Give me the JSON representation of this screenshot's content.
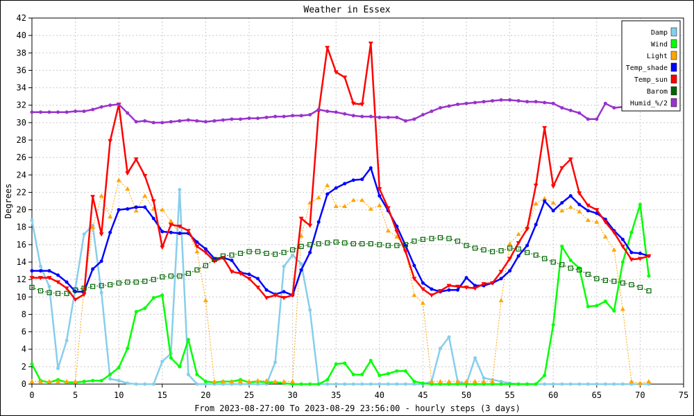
{
  "chart_data": {
    "type": "line",
    "title": "Weather in Essex",
    "xlabel": "From 2023-08-27:00 To 2023-08-29 23:56:00 - hourly steps (3 days)",
    "ylabel": "Degrees",
    "xlim": [
      0,
      75
    ],
    "ylim": [
      0,
      42
    ],
    "xticks": [
      0,
      5,
      10,
      15,
      20,
      25,
      30,
      35,
      40,
      45,
      50,
      55,
      60,
      65,
      70,
      75
    ],
    "yticks": [
      0,
      2,
      4,
      6,
      8,
      10,
      12,
      14,
      16,
      18,
      20,
      22,
      24,
      26,
      28,
      30,
      32,
      34,
      36,
      38,
      40,
      42
    ],
    "grid": true,
    "legend_position": "top-right",
    "series": [
      {
        "name": "Damp",
        "color": "#87ceeb",
        "marker": "circle",
        "dashed": false,
        "values": [
          18.8,
          13.5,
          11.2,
          1.8,
          5.0,
          11.0,
          17.2,
          18.2,
          10.5,
          0.6,
          0.4,
          0.1,
          0.0,
          0.0,
          0.0,
          2.6,
          3.5,
          22.3,
          1.1,
          0.0,
          0.0,
          0.0,
          0.0,
          0.0,
          0.0,
          0.0,
          0.0,
          0.0,
          2.5,
          13.5,
          14.8,
          13.8,
          8.5,
          0.0,
          0.0,
          0.0,
          0.0,
          0.0,
          0.0,
          0.0,
          0.0,
          0.0,
          0.0,
          0.0,
          0.0,
          0.0,
          0.3,
          4.1,
          5.4,
          0.3,
          0.0,
          3.0,
          0.7,
          0.5,
          0.3,
          0.1,
          0.0,
          0.0,
          0.0,
          0.0,
          0.0,
          0.0,
          0.0,
          0.0,
          0.0,
          0.0,
          0.0,
          0.0,
          0.0,
          0.0,
          0.0,
          0.0
        ]
      },
      {
        "name": "Wind",
        "color": "#00ff00",
        "marker": "circle",
        "dashed": false,
        "values": [
          2.3,
          0.4,
          0.2,
          0.5,
          0.2,
          0.2,
          0.3,
          0.4,
          0.4,
          1.1,
          1.9,
          4.1,
          8.3,
          8.7,
          9.9,
          10.2,
          3.0,
          2.0,
          5.1,
          1.1,
          0.3,
          0.2,
          0.3,
          0.3,
          0.5,
          0.2,
          0.3,
          0.2,
          0.2,
          0.1,
          0.0,
          0.0,
          0.0,
          0.0,
          0.5,
          2.3,
          2.4,
          1.1,
          1.1,
          2.7,
          1.0,
          1.2,
          1.5,
          1.5,
          0.3,
          0.1,
          0.0,
          0.0,
          0.0,
          0.0,
          0.0,
          0.0,
          0.0,
          0.0,
          0.0,
          0.0,
          0.0,
          0.0,
          0.0,
          1.0,
          6.8,
          15.8,
          14.2,
          13.3,
          8.9,
          9.0,
          9.5,
          8.4,
          14.0,
          17.4,
          20.6,
          12.4
        ]
      },
      {
        "name": "Light",
        "color": "#ffa500",
        "marker": "triangle",
        "dashed": true,
        "values": [
          0.3,
          0.3,
          0.3,
          0.3,
          0.3,
          0.3,
          11.0,
          18.0,
          21.6,
          19.2,
          23.4,
          22.4,
          19.9,
          21.6,
          20.1,
          20.0,
          18.7,
          17.3,
          17.4,
          15.2,
          9.6,
          0.3,
          0.3,
          0.3,
          0.3,
          0.3,
          0.4,
          0.4,
          0.3,
          0.3,
          0.3,
          17.0,
          20.8,
          21.4,
          22.8,
          20.4,
          20.4,
          21.1,
          21.1,
          20.1,
          20.5,
          17.6,
          16.9,
          15.6,
          10.2,
          9.3,
          0.3,
          0.3,
          0.3,
          0.3,
          0.3,
          0.3,
          0.3,
          0.3,
          9.6,
          16.1,
          17.2,
          18.0,
          20.7,
          21.3,
          20.8,
          19.9,
          20.3,
          19.8,
          18.8,
          18.6,
          16.9,
          15.4,
          8.6,
          0.3,
          0.1,
          0.3
        ]
      },
      {
        "name": "Temp_shade",
        "color": "#0000ff",
        "marker": "circle",
        "dashed": false,
        "values": [
          13.0,
          13.0,
          13.0,
          12.5,
          11.7,
          10.6,
          10.6,
          13.2,
          14.1,
          17.4,
          20.0,
          20.1,
          20.3,
          20.3,
          19.0,
          17.5,
          17.4,
          17.3,
          17.3,
          16.3,
          15.5,
          14.4,
          14.5,
          14.2,
          12.8,
          12.6,
          12.1,
          10.8,
          10.3,
          10.6,
          10.2,
          13.1,
          15.1,
          18.6,
          21.8,
          22.5,
          23.0,
          23.4,
          23.5,
          24.8,
          21.6,
          19.9,
          18.1,
          15.9,
          13.6,
          11.6,
          10.9,
          10.6,
          10.8,
          10.8,
          12.2,
          11.3,
          11.3,
          11.6,
          12.1,
          13.0,
          14.7,
          15.9,
          18.3,
          21.0,
          19.9,
          20.8,
          21.6,
          20.6,
          19.9,
          19.6,
          18.9,
          17.6,
          16.6,
          15.1,
          15.0,
          14.7
        ]
      },
      {
        "name": "Temp_sun",
        "color": "#ff0000",
        "marker": "tri-down",
        "dashed": false,
        "values": [
          12.2,
          12.2,
          12.2,
          11.7,
          11.0,
          9.7,
          10.3,
          21.5,
          17.2,
          27.9,
          32.1,
          24.2,
          25.8,
          23.9,
          21.0,
          15.7,
          18.3,
          18.1,
          17.6,
          15.8,
          15.1,
          14.1,
          14.5,
          12.9,
          12.7,
          12.1,
          11.1,
          9.9,
          10.2,
          9.9,
          10.2,
          19.0,
          18.2,
          31.3,
          38.6,
          35.8,
          35.2,
          32.2,
          32.1,
          39.1,
          22.4,
          20.2,
          17.5,
          15.2,
          12.1,
          10.9,
          10.2,
          10.7,
          11.3,
          11.2,
          11.1,
          11.0,
          11.5,
          11.6,
          12.9,
          14.4,
          16.2,
          17.8,
          22.8,
          29.4,
          22.7,
          24.8,
          25.8,
          21.9,
          20.5,
          20.0,
          18.6,
          17.4,
          15.8,
          14.3,
          14.4,
          14.7
        ]
      },
      {
        "name": "Barom",
        "color": "#006400",
        "marker": "square",
        "dashed": true,
        "values": [
          11.1,
          10.7,
          10.5,
          10.4,
          10.4,
          10.8,
          11.0,
          11.2,
          11.3,
          11.4,
          11.6,
          11.7,
          11.7,
          11.8,
          12.0,
          12.3,
          12.4,
          12.4,
          12.7,
          13.1,
          13.6,
          14.3,
          14.7,
          14.8,
          15.0,
          15.2,
          15.2,
          15.0,
          14.9,
          15.1,
          15.4,
          15.8,
          16.0,
          16.1,
          16.2,
          16.3,
          16.2,
          16.1,
          16.1,
          16.1,
          16.0,
          15.9,
          15.9,
          16.0,
          16.4,
          16.6,
          16.7,
          16.8,
          16.7,
          16.4,
          15.9,
          15.6,
          15.4,
          15.2,
          15.3,
          15.6,
          15.5,
          15.1,
          14.8,
          14.4,
          14.0,
          13.7,
          13.3,
          13.1,
          12.6,
          12.1,
          11.9,
          11.8,
          11.6,
          11.4,
          11.1,
          10.7
        ]
      },
      {
        "name": "Humid_%/2",
        "color": "#9932cc",
        "marker": "circle",
        "dashed": false,
        "values": [
          31.2,
          31.2,
          31.2,
          31.2,
          31.2,
          31.3,
          31.3,
          31.5,
          31.8,
          32.0,
          32.1,
          31.1,
          30.1,
          30.2,
          30.0,
          30.0,
          30.1,
          30.2,
          30.3,
          30.2,
          30.1,
          30.2,
          30.3,
          30.4,
          30.4,
          30.5,
          30.5,
          30.6,
          30.7,
          30.7,
          30.8,
          30.8,
          30.9,
          31.5,
          31.3,
          31.2,
          31.0,
          30.8,
          30.7,
          30.7,
          30.6,
          30.6,
          30.6,
          30.2,
          30.4,
          30.9,
          31.3,
          31.7,
          31.9,
          32.1,
          32.2,
          32.3,
          32.4,
          32.5,
          32.6,
          32.6,
          32.5,
          32.4,
          32.4,
          32.3,
          32.2,
          31.7,
          31.4,
          31.1,
          30.4,
          30.4,
          32.2,
          31.7,
          31.8,
          31.8,
          31.8,
          31.8
        ]
      }
    ]
  }
}
